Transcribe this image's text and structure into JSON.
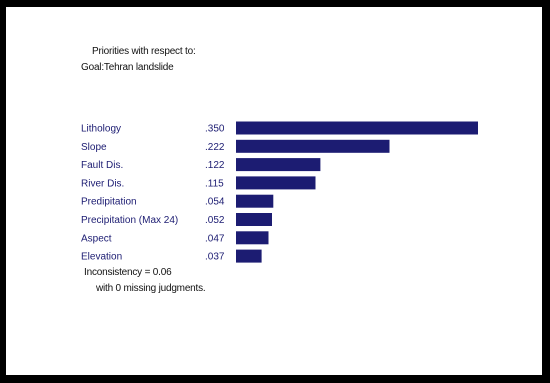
{
  "header": {
    "line1": "Priorities with respect to:",
    "line2": "Goal:Tehran landslide"
  },
  "footer": {
    "inconsistency": "Inconsistency = 0.06",
    "missing": "with 0 missing judgments."
  },
  "colors": {
    "bar": "#1c1c72",
    "label": "#1c1c72",
    "value": "#1c1c72",
    "frame": "#000000"
  },
  "chart_data": {
    "type": "bar",
    "orientation": "horizontal",
    "categories": [
      "Lithology",
      "Slope",
      "Fault Dis.",
      "River Dis.",
      "Predipitation",
      "Precipitation (Max 24)",
      "Aspect",
      "Elevation"
    ],
    "values": [
      0.35,
      0.222,
      0.122,
      0.115,
      0.054,
      0.052,
      0.047,
      0.037
    ],
    "value_labels": [
      ".350",
      ".222",
      ".122",
      ".115",
      ".054",
      ".052",
      ".047",
      ".037"
    ],
    "xlim": [
      0,
      0.35
    ],
    "grid": false
  }
}
